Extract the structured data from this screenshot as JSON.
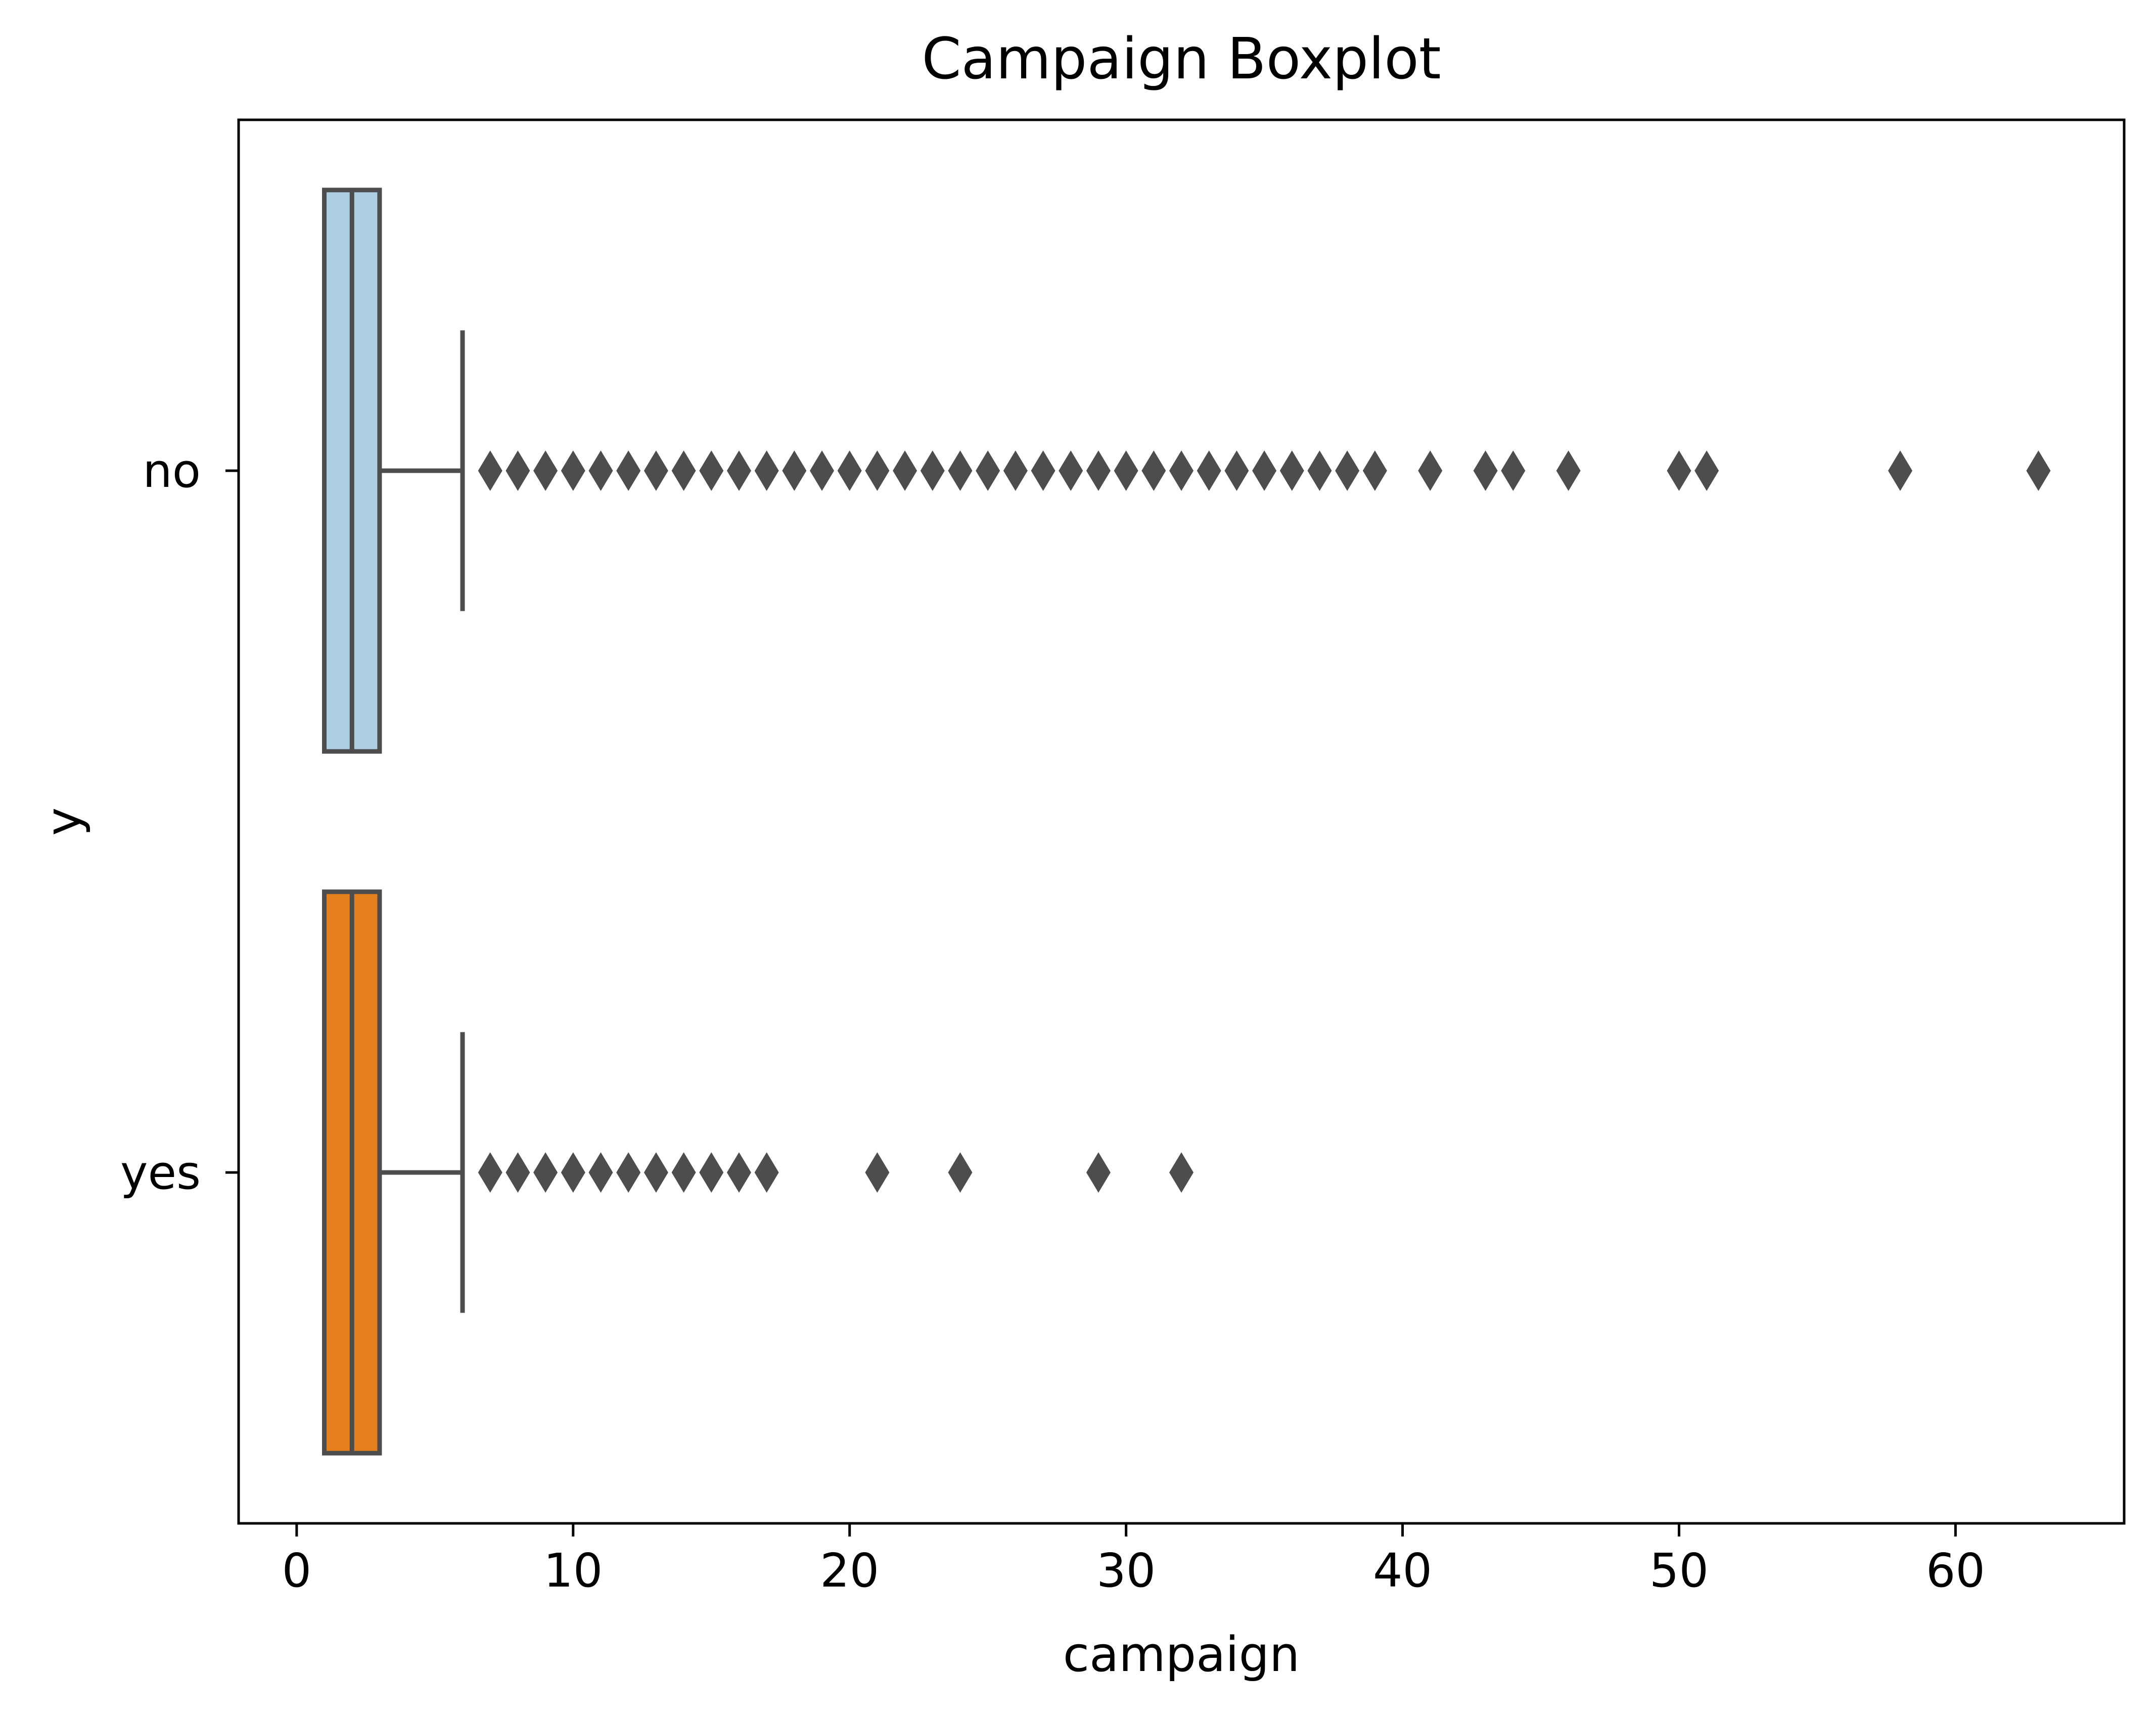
{
  "chart_data": {
    "type": "boxplot",
    "orientation": "horizontal",
    "title": "Campaign Boxplot",
    "xlabel": "campaign",
    "ylabel": "y",
    "xlim": [
      -2.1,
      66.1
    ],
    "xticks": [
      0,
      10,
      20,
      30,
      40,
      50,
      60
    ],
    "grid": false,
    "legend": "none",
    "categories": [
      "no",
      "yes"
    ],
    "series": [
      {
        "name": "no",
        "color": "#aecfe3",
        "min": 1,
        "q1": 1,
        "median": 2,
        "q3": 3,
        "max": 6,
        "outliers": [
          7,
          8,
          9,
          10,
          11,
          12,
          13,
          14,
          15,
          16,
          17,
          18,
          19,
          20,
          21,
          22,
          23,
          24,
          25,
          26,
          27,
          28,
          29,
          30,
          31,
          32,
          33,
          34,
          35,
          36,
          37,
          38,
          39,
          41,
          43,
          44,
          46,
          50,
          51,
          58,
          63
        ]
      },
      {
        "name": "yes",
        "color": "#e6801f",
        "min": 1,
        "q1": 1,
        "median": 2,
        "q3": 3,
        "max": 6,
        "outliers": [
          7,
          8,
          9,
          10,
          11,
          12,
          13,
          14,
          15,
          16,
          17,
          21,
          24,
          29,
          32
        ]
      }
    ],
    "line_color": "#4d4d4d"
  }
}
